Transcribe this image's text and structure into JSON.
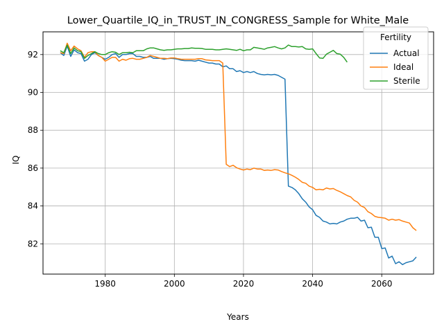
{
  "chart_data": {
    "type": "line",
    "title": "Lower_Quartile_IQ_in_TRUST_IN_CONGRESS_Sample for White_Male",
    "xlabel": "Years",
    "ylabel": "IQ",
    "xlim": [
      1962,
      2075
    ],
    "ylim": [
      80.4,
      93.2
    ],
    "xticks": [
      1980,
      2000,
      2020,
      2040,
      2060
    ],
    "yticks": [
      82,
      84,
      86,
      88,
      90,
      92
    ],
    "grid": true,
    "legend": {
      "title": "Fertility",
      "position": "top-right"
    },
    "series": [
      {
        "name": "Actual",
        "color": "#1f77b4",
        "points": [
          [
            1967,
            92.1
          ],
          [
            1968,
            91.95
          ],
          [
            1969,
            92.45
          ],
          [
            1970,
            91.9
          ],
          [
            1971,
            92.25
          ],
          [
            1972,
            92.1
          ],
          [
            1973,
            92.05
          ],
          [
            1974,
            91.65
          ],
          [
            1975,
            91.75
          ],
          [
            1976,
            92.0
          ],
          [
            1977,
            92.1
          ],
          [
            1978,
            91.95
          ],
          [
            1979,
            91.85
          ],
          [
            1980,
            91.75
          ],
          [
            1981,
            91.85
          ],
          [
            1982,
            92.0
          ],
          [
            1983,
            92.05
          ],
          [
            1984,
            91.85
          ],
          [
            1985,
            92.0
          ],
          [
            1986,
            92.0
          ],
          [
            1987,
            92.05
          ],
          [
            1988,
            92.05
          ],
          [
            1989,
            91.9
          ],
          [
            1990,
            91.9
          ],
          [
            1991,
            91.85
          ],
          [
            1992,
            91.85
          ],
          [
            1993,
            91.9
          ],
          [
            1994,
            91.8
          ],
          [
            1995,
            91.8
          ],
          [
            1996,
            91.8
          ],
          [
            1997,
            91.75
          ],
          [
            1998,
            91.78
          ],
          [
            1999,
            91.8
          ],
          [
            2000,
            91.78
          ],
          [
            2001,
            91.75
          ],
          [
            2002,
            91.7
          ],
          [
            2003,
            91.68
          ],
          [
            2004,
            91.68
          ],
          [
            2005,
            91.68
          ],
          [
            2006,
            91.65
          ],
          [
            2007,
            91.7
          ],
          [
            2008,
            91.65
          ],
          [
            2009,
            91.6
          ],
          [
            2010,
            91.55
          ],
          [
            2011,
            91.55
          ],
          [
            2012,
            91.5
          ],
          [
            2013,
            91.5
          ],
          [
            2014,
            91.35
          ],
          [
            2015,
            91.4
          ],
          [
            2016,
            91.25
          ],
          [
            2017,
            91.25
          ],
          [
            2018,
            91.1
          ],
          [
            2019,
            91.15
          ],
          [
            2020,
            91.05
          ],
          [
            2021,
            91.1
          ],
          [
            2022,
            91.05
          ],
          [
            2023,
            91.1
          ],
          [
            2024,
            91.0
          ],
          [
            2025,
            90.95
          ],
          [
            2026,
            90.93
          ],
          [
            2027,
            90.95
          ],
          [
            2028,
            90.93
          ],
          [
            2029,
            90.95
          ],
          [
            2030,
            90.9
          ],
          [
            2031,
            90.8
          ],
          [
            2032,
            90.7
          ],
          [
            2033,
            85.05
          ],
          [
            2034,
            84.98
          ],
          [
            2035,
            84.85
          ],
          [
            2036,
            84.65
          ],
          [
            2037,
            84.38
          ],
          [
            2038,
            84.2
          ],
          [
            2039,
            83.95
          ],
          [
            2040,
            83.8
          ],
          [
            2041,
            83.5
          ],
          [
            2042,
            83.4
          ],
          [
            2043,
            83.2
          ],
          [
            2044,
            83.15
          ],
          [
            2045,
            83.05
          ],
          [
            2046,
            83.08
          ],
          [
            2047,
            83.05
          ],
          [
            2048,
            83.15
          ],
          [
            2049,
            83.2
          ],
          [
            2050,
            83.3
          ],
          [
            2051,
            83.35
          ],
          [
            2052,
            83.35
          ],
          [
            2053,
            83.4
          ],
          [
            2054,
            83.2
          ],
          [
            2055,
            83.25
          ],
          [
            2056,
            82.85
          ],
          [
            2057,
            82.88
          ],
          [
            2058,
            82.35
          ],
          [
            2059,
            82.35
          ],
          [
            2060,
            81.75
          ],
          [
            2061,
            81.78
          ],
          [
            2062,
            81.25
          ],
          [
            2063,
            81.35
          ],
          [
            2064,
            80.95
          ],
          [
            2065,
            81.05
          ],
          [
            2066,
            80.9
          ],
          [
            2067,
            81.0
          ],
          [
            2068,
            81.05
          ],
          [
            2069,
            81.1
          ],
          [
            2070,
            81.3
          ]
        ]
      },
      {
        "name": "Ideal",
        "color": "#ff7f0e",
        "points": [
          [
            1967,
            92.1
          ],
          [
            1968,
            92.05
          ],
          [
            1969,
            92.6
          ],
          [
            1970,
            92.2
          ],
          [
            1971,
            92.45
          ],
          [
            1972,
            92.3
          ],
          [
            1973,
            92.2
          ],
          [
            1974,
            91.85
          ],
          [
            1975,
            92.1
          ],
          [
            1976,
            92.15
          ],
          [
            1977,
            92.15
          ],
          [
            1978,
            91.95
          ],
          [
            1979,
            91.85
          ],
          [
            1980,
            91.65
          ],
          [
            1981,
            91.75
          ],
          [
            1982,
            91.85
          ],
          [
            1983,
            91.85
          ],
          [
            1984,
            91.65
          ],
          [
            1985,
            91.75
          ],
          [
            1986,
            91.7
          ],
          [
            1987,
            91.78
          ],
          [
            1988,
            91.8
          ],
          [
            1989,
            91.75
          ],
          [
            1990,
            91.75
          ],
          [
            1991,
            91.8
          ],
          [
            1992,
            91.85
          ],
          [
            1993,
            91.95
          ],
          [
            1994,
            91.9
          ],
          [
            1995,
            91.85
          ],
          [
            1996,
            91.8
          ],
          [
            1997,
            91.8
          ],
          [
            1998,
            91.78
          ],
          [
            1999,
            91.82
          ],
          [
            2000,
            91.82
          ],
          [
            2001,
            91.78
          ],
          [
            2002,
            91.75
          ],
          [
            2003,
            91.75
          ],
          [
            2004,
            91.75
          ],
          [
            2005,
            91.75
          ],
          [
            2006,
            91.75
          ],
          [
            2007,
            91.78
          ],
          [
            2008,
            91.78
          ],
          [
            2009,
            91.72
          ],
          [
            2010,
            91.7
          ],
          [
            2011,
            91.68
          ],
          [
            2012,
            91.68
          ],
          [
            2013,
            91.68
          ],
          [
            2014,
            91.55
          ],
          [
            2015,
            86.2
          ],
          [
            2016,
            86.08
          ],
          [
            2017,
            86.15
          ],
          [
            2018,
            86.02
          ],
          [
            2019,
            85.95
          ],
          [
            2020,
            85.9
          ],
          [
            2021,
            85.95
          ],
          [
            2022,
            85.92
          ],
          [
            2023,
            86.0
          ],
          [
            2024,
            85.95
          ],
          [
            2025,
            85.95
          ],
          [
            2026,
            85.88
          ],
          [
            2027,
            85.9
          ],
          [
            2028,
            85.88
          ],
          [
            2029,
            85.92
          ],
          [
            2030,
            85.9
          ],
          [
            2031,
            85.82
          ],
          [
            2032,
            85.75
          ],
          [
            2033,
            85.7
          ],
          [
            2034,
            85.62
          ],
          [
            2035,
            85.52
          ],
          [
            2036,
            85.4
          ],
          [
            2037,
            85.25
          ],
          [
            2038,
            85.2
          ],
          [
            2039,
            85.05
          ],
          [
            2040,
            84.98
          ],
          [
            2041,
            84.85
          ],
          [
            2042,
            84.88
          ],
          [
            2043,
            84.85
          ],
          [
            2044,
            84.95
          ],
          [
            2045,
            84.9
          ],
          [
            2046,
            84.92
          ],
          [
            2047,
            84.82
          ],
          [
            2048,
            84.75
          ],
          [
            2049,
            84.65
          ],
          [
            2050,
            84.55
          ],
          [
            2051,
            84.48
          ],
          [
            2052,
            84.3
          ],
          [
            2053,
            84.2
          ],
          [
            2054,
            84.0
          ],
          [
            2055,
            83.92
          ],
          [
            2056,
            83.7
          ],
          [
            2057,
            83.6
          ],
          [
            2058,
            83.45
          ],
          [
            2059,
            83.4
          ],
          [
            2060,
            83.38
          ],
          [
            2061,
            83.35
          ],
          [
            2062,
            83.25
          ],
          [
            2063,
            83.3
          ],
          [
            2064,
            83.25
          ],
          [
            2065,
            83.28
          ],
          [
            2066,
            83.2
          ],
          [
            2067,
            83.15
          ],
          [
            2068,
            83.1
          ],
          [
            2069,
            82.85
          ],
          [
            2070,
            82.7
          ]
        ]
      },
      {
        "name": "Sterile",
        "color": "#2ca02c",
        "points": [
          [
            1967,
            92.2
          ],
          [
            1968,
            92.1
          ],
          [
            1969,
            92.5
          ],
          [
            1970,
            92.05
          ],
          [
            1971,
            92.35
          ],
          [
            1972,
            92.2
          ],
          [
            1973,
            92.15
          ],
          [
            1974,
            91.8
          ],
          [
            1975,
            91.95
          ],
          [
            1976,
            92.05
          ],
          [
            1977,
            92.15
          ],
          [
            1978,
            92.05
          ],
          [
            1979,
            92.0
          ],
          [
            1980,
            92.0
          ],
          [
            1981,
            92.1
          ],
          [
            1982,
            92.15
          ],
          [
            1983,
            92.12
          ],
          [
            1984,
            92.0
          ],
          [
            1985,
            92.1
          ],
          [
            1986,
            92.1
          ],
          [
            1987,
            92.12
          ],
          [
            1988,
            92.1
          ],
          [
            1989,
            92.2
          ],
          [
            1990,
            92.2
          ],
          [
            1991,
            92.2
          ],
          [
            1992,
            92.3
          ],
          [
            1993,
            92.35
          ],
          [
            1994,
            92.35
          ],
          [
            1995,
            92.3
          ],
          [
            1996,
            92.25
          ],
          [
            1997,
            92.22
          ],
          [
            1998,
            92.25
          ],
          [
            1999,
            92.25
          ],
          [
            2000,
            92.28
          ],
          [
            2001,
            92.3
          ],
          [
            2002,
            92.3
          ],
          [
            2003,
            92.32
          ],
          [
            2004,
            92.32
          ],
          [
            2005,
            92.35
          ],
          [
            2006,
            92.33
          ],
          [
            2007,
            92.33
          ],
          [
            2008,
            92.32
          ],
          [
            2009,
            92.28
          ],
          [
            2010,
            92.28
          ],
          [
            2011,
            92.28
          ],
          [
            2012,
            92.25
          ],
          [
            2013,
            92.25
          ],
          [
            2014,
            92.28
          ],
          [
            2015,
            92.3
          ],
          [
            2016,
            92.28
          ],
          [
            2017,
            92.25
          ],
          [
            2018,
            92.22
          ],
          [
            2019,
            92.28
          ],
          [
            2020,
            92.2
          ],
          [
            2021,
            92.25
          ],
          [
            2022,
            92.25
          ],
          [
            2023,
            92.38
          ],
          [
            2024,
            92.35
          ],
          [
            2025,
            92.32
          ],
          [
            2026,
            92.28
          ],
          [
            2027,
            92.35
          ],
          [
            2028,
            92.38
          ],
          [
            2029,
            92.42
          ],
          [
            2030,
            92.35
          ],
          [
            2031,
            92.3
          ],
          [
            2032,
            92.35
          ],
          [
            2033,
            92.5
          ],
          [
            2034,
            92.42
          ],
          [
            2035,
            92.42
          ],
          [
            2036,
            92.4
          ],
          [
            2037,
            92.42
          ],
          [
            2038,
            92.3
          ],
          [
            2039,
            92.28
          ],
          [
            2040,
            92.3
          ],
          [
            2041,
            92.05
          ],
          [
            2042,
            91.82
          ],
          [
            2043,
            91.8
          ],
          [
            2044,
            92.02
          ],
          [
            2045,
            92.12
          ],
          [
            2046,
            92.22
          ],
          [
            2047,
            92.05
          ],
          [
            2048,
            92.02
          ],
          [
            2049,
            91.85
          ],
          [
            2050,
            91.6
          ]
        ]
      }
    ]
  }
}
